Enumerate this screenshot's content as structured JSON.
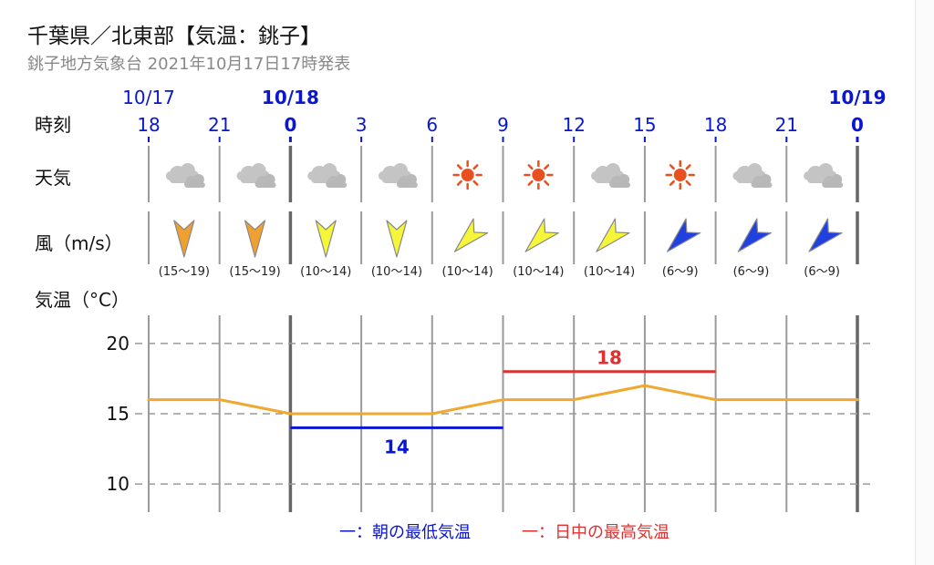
{
  "header": {
    "title": "千葉県／北東部【気温：銚子】",
    "subtitle": "銚子地方気象台 2021年10月17日17時発表"
  },
  "labels": {
    "time": "時刻",
    "weather": "天気",
    "wind": "風（m/s）",
    "temp_axis": "気温（°C）"
  },
  "times": [
    {
      "hour": "18",
      "date": "10/17",
      "bold": false
    },
    {
      "hour": "21",
      "date": "",
      "bold": false
    },
    {
      "hour": "0",
      "date": "10/18",
      "bold": true
    },
    {
      "hour": "3",
      "date": "",
      "bold": false
    },
    {
      "hour": "6",
      "date": "",
      "bold": false
    },
    {
      "hour": "9",
      "date": "",
      "bold": false
    },
    {
      "hour": "12",
      "date": "",
      "bold": false
    },
    {
      "hour": "15",
      "date": "",
      "bold": false
    },
    {
      "hour": "18",
      "date": "",
      "bold": false
    },
    {
      "hour": "21",
      "date": "",
      "bold": false
    },
    {
      "hour": "0",
      "date": "10/19",
      "bold": true
    }
  ],
  "weather": [
    {
      "icon": "cloud-icon"
    },
    {
      "icon": "cloud-icon"
    },
    {
      "icon": "cloud-icon"
    },
    {
      "icon": "cloud-icon"
    },
    {
      "icon": "sun-icon"
    },
    {
      "icon": "sun-icon"
    },
    {
      "icon": "cloud-icon"
    },
    {
      "icon": "sun-icon"
    },
    {
      "icon": "cloud-icon"
    },
    {
      "icon": "cloud-icon"
    }
  ],
  "wind": [
    {
      "dir": "N",
      "speed": "(15〜19)",
      "color": "#f0a030"
    },
    {
      "dir": "N",
      "speed": "(15〜19)",
      "color": "#f0a030"
    },
    {
      "dir": "N",
      "speed": "(10〜14)",
      "color": "#f5f53a"
    },
    {
      "dir": "N",
      "speed": "(10〜14)",
      "color": "#f5f53a"
    },
    {
      "dir": "NE",
      "speed": "(10〜14)",
      "color": "#f5f53a"
    },
    {
      "dir": "NE",
      "speed": "(10〜14)",
      "color": "#f5f53a"
    },
    {
      "dir": "NE",
      "speed": "(10〜14)",
      "color": "#f5f53a"
    },
    {
      "dir": "NE",
      "speed": "(6〜9)",
      "color": "#2040e0"
    },
    {
      "dir": "NE",
      "speed": "(6〜9)",
      "color": "#2040e0"
    },
    {
      "dir": "NE",
      "speed": "(6〜9)",
      "color": "#2040e0"
    }
  ],
  "chart_data": {
    "type": "line",
    "x": [
      "10/17 18",
      "10/17 21",
      "10/18 0",
      "10/18 3",
      "10/18 6",
      "10/18 9",
      "10/18 12",
      "10/18 15",
      "10/18 18",
      "10/18 21",
      "10/19 0"
    ],
    "series": [
      {
        "values": [
          16,
          16,
          15,
          15,
          15,
          16,
          16,
          17,
          16,
          16,
          16
        ],
        "color": "#f0a830"
      }
    ],
    "min_temp": {
      "value": 14,
      "label": "14",
      "from": "10/18 0",
      "to": "10/18 9",
      "color": "#0a16d0"
    },
    "max_temp": {
      "value": 18,
      "label": "18",
      "from": "10/18 9",
      "to": "10/18 18",
      "color": "#e03030"
    },
    "yticks": [
      "10",
      "15",
      "20"
    ],
    "ylim": [
      8,
      22
    ],
    "ylabel": "気温（°C）",
    "grid": true
  },
  "legend": {
    "min": "一：朝の最低気温",
    "max": "一：日中の最高気温",
    "min_color": "#0a16d0",
    "max_color": "#e03030"
  },
  "colors": {
    "blue_text": "#0a16d0",
    "grid": "#999999",
    "separator": "#9a9a9a"
  }
}
